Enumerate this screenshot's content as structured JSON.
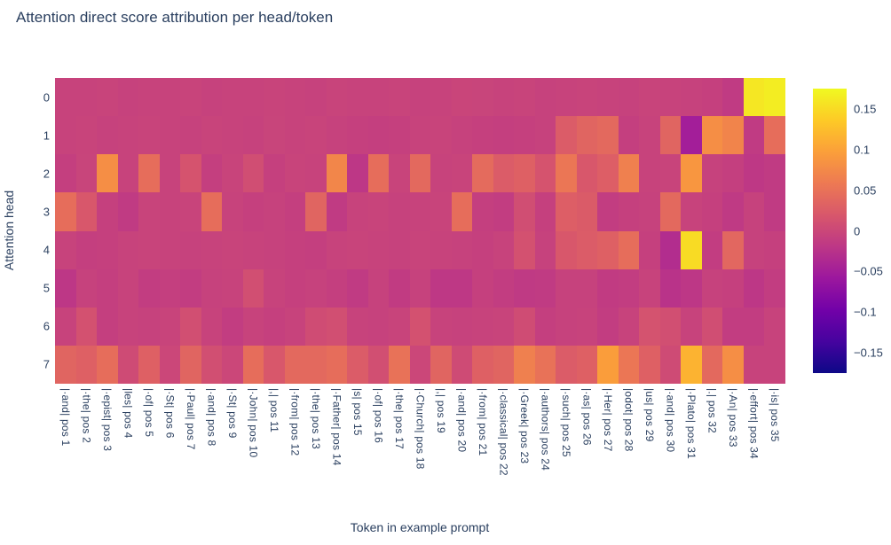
{
  "title": "Attention direct score attribution per head/token",
  "chart_data": {
    "type": "heatmap",
    "title": "Attention direct score attribution per head/token",
    "xlabel": "Token in example prompt",
    "ylabel": "Attention head",
    "x_labels": [
      "|·and| pos 1",
      "|·the| pos 2",
      "|·epist| pos 3",
      "|les| pos 4",
      "|·of| pos 5",
      "|·St| pos 6",
      "|·Paul| pos 7",
      "|·and| pos 8",
      "|·St| pos 9",
      "|·John| pos 10",
      "|,| pos 11",
      "|·from| pos 12",
      "|·the| pos 13",
      "|·Father| pos 14",
      "|s| pos 15",
      "|·of| pos 16",
      "|·the| pos 17",
      "|·Church| pos 18",
      "|,| pos 19",
      "|·and| pos 20",
      "|·from| pos 21",
      "|·classical| pos 22",
      "|·Greek| pos 23",
      "|·authors| pos 24",
      "|·such| pos 25",
      "|·as| pos 26",
      "|·Her| pos 27",
      "|odot| pos 28",
      "|us| pos 29",
      "|·and| pos 30",
      "|·Plato| pos 31",
      "|.| pos 32",
      "|·An| pos 33",
      "|·effort| pos 34",
      "|·is| pos 35"
    ],
    "y_labels": [
      "0",
      "1",
      "2",
      "3",
      "4",
      "5",
      "6",
      "7"
    ],
    "z": [
      [
        -0.005,
        -0.005,
        -0.004,
        -0.006,
        -0.005,
        -0.005,
        -0.004,
        -0.006,
        -0.005,
        -0.005,
        -0.004,
        -0.005,
        -0.006,
        -0.004,
        -0.005,
        -0.005,
        -0.004,
        -0.006,
        -0.005,
        -0.002,
        -0.003,
        -0.005,
        -0.004,
        -0.006,
        -0.005,
        -0.004,
        -0.005,
        -0.006,
        -0.004,
        -0.005,
        -0.006,
        -0.008,
        -0.015,
        0.16,
        0.165
      ],
      [
        -0.005,
        -0.004,
        -0.006,
        -0.005,
        -0.004,
        -0.005,
        -0.006,
        -0.004,
        -0.005,
        -0.006,
        -0.003,
        -0.005,
        -0.004,
        -0.006,
        -0.008,
        -0.01,
        -0.008,
        -0.005,
        -0.004,
        -0.006,
        -0.008,
        -0.01,
        -0.008,
        -0.006,
        0.025,
        0.035,
        0.04,
        -0.01,
        -0.005,
        0.035,
        -0.05,
        0.08,
        0.07,
        -0.015,
        0.045
      ],
      [
        -0.01,
        -0.003,
        0.08,
        -0.005,
        0.045,
        -0.005,
        0.015,
        -0.01,
        -0.004,
        0.008,
        -0.008,
        -0.004,
        -0.005,
        0.072,
        -0.02,
        0.045,
        -0.004,
        0.04,
        -0.005,
        -0.004,
        0.042,
        0.025,
        0.03,
        0.015,
        0.055,
        0.02,
        0.028,
        0.065,
        -0.005,
        -0.004,
        0.088,
        -0.006,
        -0.01,
        -0.018,
        -0.015
      ],
      [
        0.045,
        0.02,
        -0.008,
        -0.015,
        -0.004,
        -0.005,
        -0.004,
        0.045,
        -0.005,
        -0.008,
        -0.006,
        -0.01,
        0.035,
        -0.015,
        -0.005,
        -0.004,
        -0.006,
        -0.005,
        -0.004,
        0.045,
        -0.01,
        -0.012,
        0.008,
        -0.008,
        0.028,
        0.024,
        -0.012,
        -0.008,
        -0.006,
        0.04,
        -0.005,
        -0.008,
        -0.016,
        -0.006,
        -0.015
      ],
      [
        -0.005,
        -0.01,
        -0.008,
        -0.005,
        -0.004,
        -0.005,
        -0.006,
        -0.005,
        -0.004,
        -0.005,
        -0.006,
        -0.008,
        -0.01,
        -0.005,
        -0.004,
        -0.005,
        -0.006,
        -0.004,
        -0.005,
        -0.006,
        -0.008,
        -0.005,
        0.012,
        -0.006,
        0.02,
        0.025,
        0.03,
        0.045,
        -0.008,
        -0.032,
        0.15,
        -0.012,
        0.038,
        -0.006,
        -0.008
      ],
      [
        -0.02,
        -0.006,
        -0.01,
        -0.005,
        -0.012,
        -0.01,
        -0.012,
        -0.006,
        -0.005,
        0.01,
        -0.005,
        -0.008,
        -0.006,
        -0.01,
        -0.015,
        -0.006,
        -0.014,
        -0.006,
        -0.018,
        -0.018,
        -0.008,
        -0.012,
        -0.016,
        -0.015,
        -0.006,
        -0.006,
        -0.014,
        -0.012,
        -0.005,
        -0.024,
        -0.02,
        -0.006,
        -0.008,
        -0.02,
        -0.012
      ],
      [
        -0.005,
        0.012,
        -0.01,
        -0.005,
        -0.006,
        -0.004,
        0.01,
        -0.005,
        -0.012,
        -0.005,
        -0.008,
        -0.005,
        0.006,
        0.01,
        -0.005,
        -0.006,
        -0.004,
        0.012,
        -0.005,
        -0.006,
        -0.005,
        -0.004,
        0.006,
        -0.01,
        -0.006,
        -0.005,
        -0.012,
        -0.005,
        0.014,
        0.01,
        -0.005,
        0.008,
        -0.012,
        -0.012,
        -0.005
      ],
      [
        0.035,
        0.03,
        0.045,
        0.005,
        0.03,
        0,
        0.035,
        0.01,
        0,
        0.045,
        0.02,
        0.04,
        0.04,
        0.045,
        0.025,
        0.01,
        0.05,
        0,
        0.035,
        0.005,
        0.03,
        0.035,
        0.065,
        0.05,
        0.025,
        0.03,
        0.095,
        0.055,
        0.03,
        0.005,
        0.115,
        0.04,
        0.08,
        -0.005,
        -0.005
      ]
    ],
    "zmin": -0.175,
    "zmax": 0.175,
    "colorscale": "plasma",
    "colorscale_stops": [
      "#0d0887",
      "#46039f",
      "#7201a8",
      "#9c179e",
      "#bd3786",
      "#d8576b",
      "#ed7953",
      "#fb9f3a",
      "#fdca26",
      "#f0f921"
    ],
    "colorbar_ticks": [
      {
        "label": "0.15",
        "value": 0.15
      },
      {
        "label": "0.1",
        "value": 0.1
      },
      {
        "label": "0.05",
        "value": 0.05
      },
      {
        "label": "0",
        "value": 0
      },
      {
        "label": "−0.05",
        "value": -0.05
      },
      {
        "label": "−0.1",
        "value": -0.1
      },
      {
        "label": "−0.15",
        "value": -0.15
      }
    ],
    "legend_position": "right",
    "grid": false,
    "text_color": "#2a3f5f"
  }
}
